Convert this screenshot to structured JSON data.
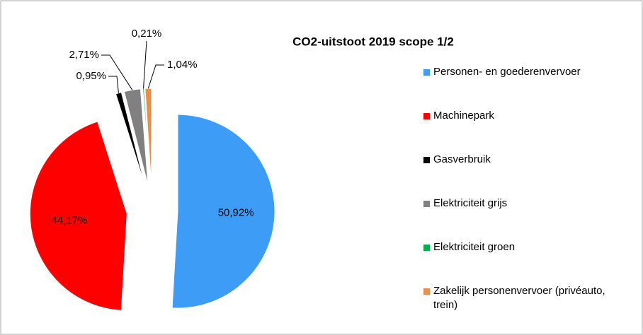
{
  "chart_data": {
    "type": "pie",
    "title": "CO2-uitstoot 2019 scope 1/2",
    "categories": [
      "Personen- en goederenvervoer",
      "Machinepark",
      "Gasverbruik",
      "Elektriciteit grijs",
      "Elektriciteit groen",
      "Zakelijk personenvervoer (privéauto, trein)"
    ],
    "values": [
      50.92,
      44.17,
      0.95,
      2.71,
      0.21,
      1.04
    ],
    "value_labels": [
      "50,92%",
      "44,17%",
      "0,95%",
      "2,71%",
      "0,21%",
      "1,04%"
    ],
    "colors": [
      "#3d9cf5",
      "#ff0000",
      "#000000",
      "#808080",
      "#00b050",
      "#e98f4b"
    ],
    "legend": "right"
  }
}
